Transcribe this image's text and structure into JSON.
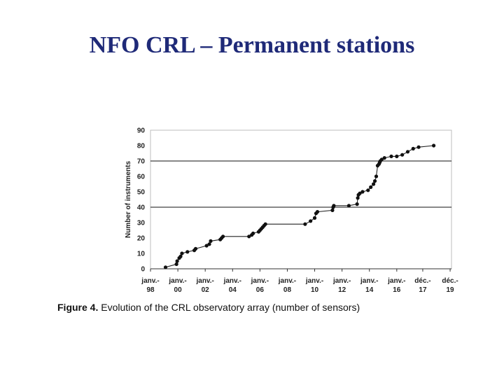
{
  "slide": {
    "title": "NFO CRL – Permanent stations"
  },
  "caption": {
    "label": "Figure 4.",
    "text": "Evolution of the CRL observatory array (number of sensors)"
  },
  "chart_data": {
    "type": "line",
    "title": "",
    "xlabel": "",
    "ylabel": "Number of instruments",
    "ylim": [
      0,
      90
    ],
    "y_ticks": [
      0,
      10,
      20,
      30,
      40,
      50,
      60,
      70,
      80,
      90
    ],
    "x_range": [
      1998,
      2020
    ],
    "x_ticks": [
      {
        "x": 1998,
        "line1": "janv.-",
        "line2": "98"
      },
      {
        "x": 2000,
        "line1": "janv.-",
        "line2": "00"
      },
      {
        "x": 2002,
        "line1": "janv.-",
        "line2": "02"
      },
      {
        "x": 2004,
        "line1": "janv.-",
        "line2": "04"
      },
      {
        "x": 2006,
        "line1": "janv.-",
        "line2": "06"
      },
      {
        "x": 2008,
        "line1": "janv.-",
        "line2": "08"
      },
      {
        "x": 2010,
        "line1": "janv.-",
        "line2": "10"
      },
      {
        "x": 2012,
        "line1": "janv.-",
        "line2": "12"
      },
      {
        "x": 2014,
        "line1": "janv.-",
        "line2": "14"
      },
      {
        "x": 2016,
        "line1": "janv.-",
        "line2": "16"
      },
      {
        "x": 2017.9,
        "line1": "déc.-",
        "line2": "17"
      },
      {
        "x": 2019.9,
        "line1": "déc.-",
        "line2": "19"
      }
    ],
    "reference_lines": [
      40,
      70
    ],
    "series": [
      {
        "name": "Number of sensors",
        "x": [
          1999.1,
          1999.9,
          1999.95,
          2000.1,
          2000.2,
          2000.3,
          2000.7,
          2001.2,
          2001.3,
          2002.1,
          2002.3,
          2002.4,
          2003.1,
          2003.2,
          2003.3,
          2005.2,
          2005.4,
          2005.5,
          2005.9,
          2006.0,
          2006.1,
          2006.2,
          2006.3,
          2006.4,
          2009.3,
          2009.7,
          2010.0,
          2010.1,
          2010.2,
          2011.3,
          2011.35,
          2011.4,
          2012.5,
          2013.1,
          2013.15,
          2013.2,
          2013.3,
          2013.5,
          2013.9,
          2014.1,
          2014.3,
          2014.4,
          2014.5,
          2014.6,
          2014.7,
          2014.75,
          2014.8,
          2014.9,
          2015.1,
          2015.6,
          2016.0,
          2016.4,
          2016.8,
          2017.2,
          2017.6,
          2018.7
        ],
        "y": [
          1,
          3,
          5,
          7,
          8,
          10,
          11,
          12,
          13,
          15,
          16,
          18,
          19,
          20,
          21,
          21,
          22,
          23,
          24,
          25,
          26,
          27,
          28,
          29,
          29,
          31,
          33,
          36,
          37,
          38,
          40,
          41,
          41,
          42,
          46,
          48,
          49,
          50,
          51,
          53,
          55,
          57,
          60,
          67,
          68,
          69,
          70,
          71,
          72,
          73,
          73,
          74,
          76,
          78,
          79,
          80
        ]
      }
    ]
  }
}
